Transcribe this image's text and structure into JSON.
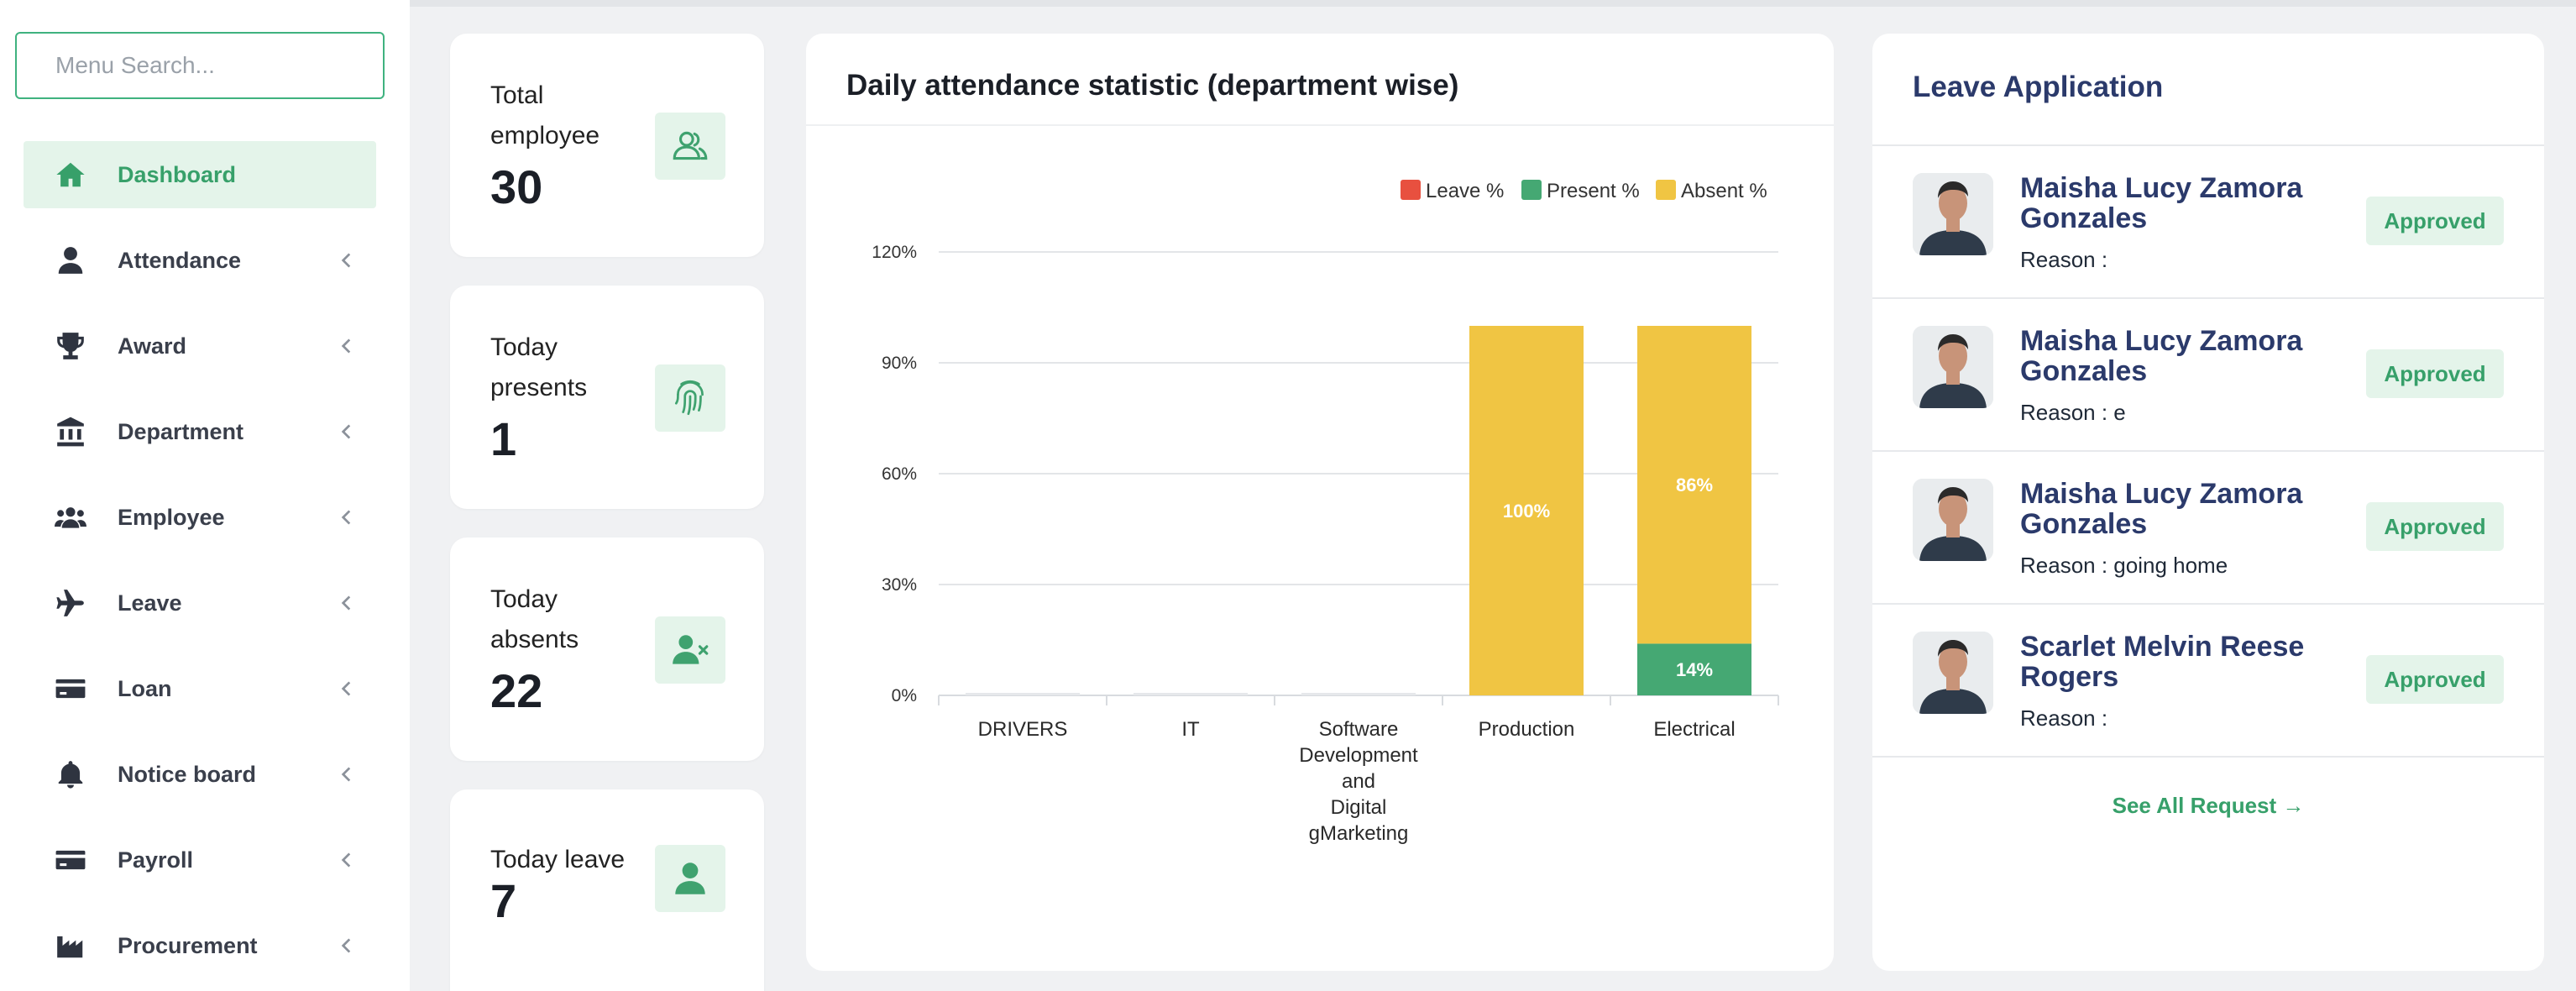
{
  "search": {
    "placeholder": "Menu Search..."
  },
  "sidebar": {
    "items": [
      {
        "label": "Dashboard",
        "icon": "home-icon",
        "active": true
      },
      {
        "label": "Attendance",
        "icon": "user-icon"
      },
      {
        "label": "Award",
        "icon": "trophy-icon"
      },
      {
        "label": "Department",
        "icon": "bank-icon"
      },
      {
        "label": "Employee",
        "icon": "users-icon"
      },
      {
        "label": "Leave",
        "icon": "plane-icon"
      },
      {
        "label": "Loan",
        "icon": "credit-card-icon"
      },
      {
        "label": "Notice board",
        "icon": "bell-icon"
      },
      {
        "label": "Payroll",
        "icon": "credit-card-icon"
      },
      {
        "label": "Procurement",
        "icon": "factory-icon"
      }
    ]
  },
  "stats": [
    {
      "label": "Total employee",
      "value": "30",
      "icon": "users-outline-icon"
    },
    {
      "label": "Today presents",
      "value": "1",
      "icon": "fingerprint-icon"
    },
    {
      "label": "Today absents",
      "value": "22",
      "icon": "user-remove-icon"
    },
    {
      "label": "Today leave",
      "value": "7",
      "icon": "user-icon"
    }
  ],
  "chart": {
    "title": "Daily attendance statistic (department wise)"
  },
  "chart_data": {
    "type": "bar",
    "stacked": true,
    "categories": [
      "DRIVERS",
      "IT",
      "Software Development and Digital gMarketing",
      "Production",
      "Electrical"
    ],
    "category_lines": [
      [
        "DRIVERS"
      ],
      [
        "IT"
      ],
      [
        "Software",
        "Development",
        "and",
        "Digital",
        "gMarketing"
      ],
      [
        "Production"
      ],
      [
        "Electrical"
      ]
    ],
    "series": [
      {
        "name": "Leave %",
        "color": "#e8503f",
        "values": [
          0,
          0,
          0,
          0,
          0
        ]
      },
      {
        "name": "Present %",
        "color": "#45a873",
        "values": [
          0,
          0,
          0,
          0,
          14
        ]
      },
      {
        "name": "Absent %",
        "color": "#f0c543",
        "values": [
          0,
          0,
          0,
          100,
          86
        ]
      }
    ],
    "data_labels": [
      {
        "category": "Production",
        "series": "Absent %",
        "text": "100%"
      },
      {
        "category": "Electrical",
        "series": "Absent %",
        "text": "86%"
      },
      {
        "category": "Electrical",
        "series": "Present %",
        "text": "14%"
      }
    ],
    "ylim": [
      0,
      120
    ],
    "yticks": [
      "0%",
      "30%",
      "60%",
      "90%",
      "120%"
    ],
    "grid": true,
    "legend": "top-right"
  },
  "leave": {
    "title": "Leave Application",
    "items": [
      {
        "name": "Maisha Lucy Zamora Gonzales",
        "reason": "Reason :",
        "status": "Approved"
      },
      {
        "name": "Maisha Lucy Zamora Gonzales",
        "reason": "Reason : e",
        "status": "Approved"
      },
      {
        "name": "Maisha Lucy Zamora Gonzales",
        "reason": "Reason : going home",
        "status": "Approved"
      },
      {
        "name": "Scarlet Melvin Reese Rogers",
        "reason": "Reason :",
        "status": "Approved"
      }
    ],
    "see_all": "See All Request →"
  }
}
